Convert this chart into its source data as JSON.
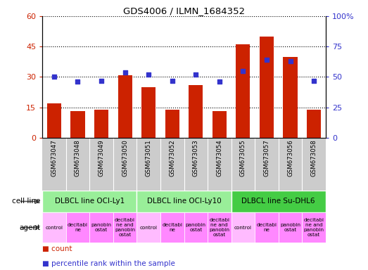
{
  "title": "GDS4006 / ILMN_1684352",
  "samples": [
    "GSM673047",
    "GSM673048",
    "GSM673049",
    "GSM673050",
    "GSM673051",
    "GSM673052",
    "GSM673053",
    "GSM673054",
    "GSM673055",
    "GSM673057",
    "GSM673056",
    "GSM673058"
  ],
  "counts": [
    17,
    13,
    14,
    31,
    25,
    14,
    26,
    13,
    46,
    50,
    40,
    14
  ],
  "percentiles": [
    50,
    46,
    47,
    54,
    52,
    47,
    52,
    46,
    55,
    64,
    63,
    47
  ],
  "bar_color": "#cc2200",
  "dot_color": "#3333cc",
  "ylim_left": [
    0,
    60
  ],
  "ylim_right": [
    0,
    100
  ],
  "yticks_left": [
    0,
    15,
    30,
    45,
    60
  ],
  "yticks_right": [
    0,
    25,
    50,
    75,
    100
  ],
  "cell_lines": [
    {
      "label": "DLBCL line OCI-Ly1",
      "start": 0,
      "end": 4,
      "color": "#99ee99"
    },
    {
      "label": "DLBCL line OCI-Ly10",
      "start": 4,
      "end": 8,
      "color": "#99ee99"
    },
    {
      "label": "DLBCL line Su-DHL6",
      "start": 8,
      "end": 12,
      "color": "#44cc44"
    }
  ],
  "agents": [
    "control",
    "decitabi\nne",
    "panobin\nostat",
    "decitabi\nne and\npanobin\nostat",
    "control",
    "decitabi\nne",
    "panobin\nostat",
    "decitabi\nne and\npanobin\nostat",
    "control",
    "decitabi\nne",
    "panobin\nostat",
    "decitabi\nne and\npanobin\nostat"
  ],
  "agent_colors": [
    "#ffbbff",
    "#ff88ff",
    "#ff88ff",
    "#ff88ff",
    "#ffbbff",
    "#ff88ff",
    "#ff88ff",
    "#ff88ff",
    "#ffbbff",
    "#ff88ff",
    "#ff88ff",
    "#ff88ff"
  ],
  "tick_bg_color": "#cccccc",
  "legend_count_color": "#cc2200",
  "legend_pct_color": "#3333cc"
}
